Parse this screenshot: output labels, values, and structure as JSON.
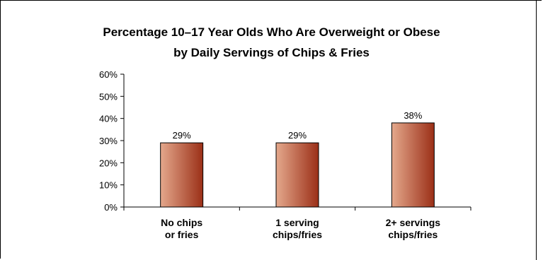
{
  "chart_data": {
    "type": "bar",
    "title_lines": [
      "Percentage 10–17 Year Olds Who Are Overweight or Obese",
      "by Daily Servings of Chips & Fries"
    ],
    "categories": [
      [
        "No chips",
        "or fries"
      ],
      [
        "1 serving",
        "chips/fries"
      ],
      [
        "2+ servings",
        "chips/fries"
      ]
    ],
    "values": [
      29,
      29,
      38
    ],
    "data_labels": [
      "29%",
      "29%",
      "38%"
    ],
    "yticks": [
      0,
      10,
      20,
      30,
      40,
      50,
      60
    ],
    "ytick_labels": [
      "0%",
      "10%",
      "20%",
      "30%",
      "40%",
      "50%",
      "60%"
    ],
    "ylim": [
      0,
      60
    ],
    "grid": false,
    "xlabel": "",
    "ylabel": "",
    "colors": {
      "bar_dark": "#9b2f17",
      "bar_light": "#e4a88c",
      "bar_border": "#000000",
      "axis": "#000000"
    }
  }
}
